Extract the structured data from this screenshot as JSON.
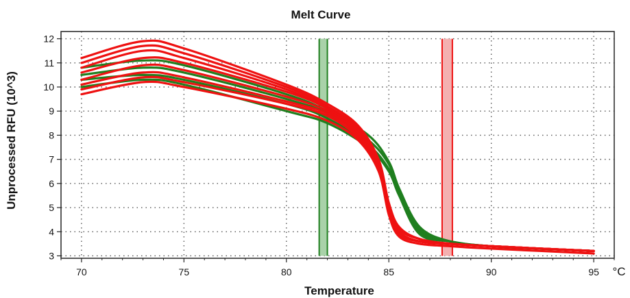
{
  "chart_data": {
    "type": "line",
    "title": "Melt Curve",
    "xlabel": "Temperature",
    "ylabel": "Unprocessed RFU (10^3)",
    "x_unit": "°C",
    "xlim": [
      69,
      96
    ],
    "ylim": [
      2.9,
      12.3
    ],
    "x_ticks": [
      70,
      75,
      80,
      85,
      90,
      95
    ],
    "y_ticks": [
      3,
      4,
      5,
      6,
      7,
      8,
      9,
      10,
      11,
      12
    ],
    "grid": true,
    "colors": {
      "red": "#ee1111",
      "green": "#1f7f1f",
      "frame": "#222222",
      "grid": "#555555"
    },
    "markers": [
      {
        "color": "green",
        "x": [
          81.6,
          82.0
        ]
      },
      {
        "color": "red",
        "x": [
          87.6,
          88.1
        ]
      }
    ],
    "series": [
      {
        "color": "red",
        "x": [
          70,
          73,
          75,
          80,
          82,
          83.5,
          84.5,
          85,
          85.5,
          86.5,
          88,
          90,
          95
        ],
        "y": [
          11.2,
          11.9,
          11.6,
          10.1,
          9.3,
          8.4,
          7.0,
          5.2,
          4.2,
          3.7,
          3.5,
          3.4,
          3.2
        ]
      },
      {
        "color": "red",
        "x": [
          70,
          73,
          75,
          80,
          82,
          83.5,
          84.5,
          85,
          85.5,
          86.5,
          88,
          90,
          95
        ],
        "y": [
          11.0,
          11.7,
          11.4,
          10.0,
          9.2,
          8.3,
          6.9,
          5.1,
          4.1,
          3.7,
          3.5,
          3.4,
          3.2
        ]
      },
      {
        "color": "red",
        "x": [
          70,
          73,
          75,
          80,
          82,
          83.5,
          84.5,
          85,
          85.5,
          86.5,
          88,
          90,
          95
        ],
        "y": [
          10.8,
          11.5,
          11.2,
          9.9,
          9.1,
          8.2,
          6.8,
          5.0,
          4.0,
          3.6,
          3.5,
          3.4,
          3.2
        ]
      },
      {
        "color": "red",
        "x": [
          70,
          73,
          75,
          80,
          82,
          83.5,
          84.5,
          85,
          85.5,
          86.5,
          88,
          90,
          95
        ],
        "y": [
          10.6,
          11.2,
          11.0,
          9.8,
          9.1,
          8.2,
          6.8,
          5.0,
          4.0,
          3.6,
          3.5,
          3.4,
          3.2
        ]
      },
      {
        "color": "red",
        "x": [
          70,
          73,
          75,
          80,
          82,
          83.5,
          84.5,
          85,
          85.5,
          86.5,
          88,
          90,
          95
        ],
        "y": [
          10.3,
          10.9,
          10.7,
          9.6,
          9.0,
          8.1,
          6.7,
          4.9,
          3.9,
          3.6,
          3.5,
          3.4,
          3.2
        ]
      },
      {
        "color": "red",
        "x": [
          70,
          73,
          75,
          80,
          82,
          83.5,
          84.5,
          85,
          85.5,
          86.5,
          88,
          90,
          95
        ],
        "y": [
          10.1,
          10.6,
          10.4,
          9.4,
          8.9,
          8.0,
          6.6,
          4.8,
          3.9,
          3.6,
          3.5,
          3.4,
          3.2
        ]
      },
      {
        "color": "red",
        "x": [
          70,
          73,
          75,
          80,
          82,
          83.5,
          84.5,
          85,
          85.5,
          86.5,
          88,
          90,
          95
        ],
        "y": [
          9.9,
          10.4,
          10.2,
          9.3,
          8.8,
          7.9,
          6.6,
          4.8,
          3.9,
          3.6,
          3.5,
          3.4,
          3.2
        ]
      },
      {
        "color": "red",
        "x": [
          70,
          73,
          75,
          80,
          82,
          83.5,
          84.5,
          85,
          85.5,
          86.5,
          88,
          90,
          95
        ],
        "y": [
          9.7,
          10.2,
          10.0,
          9.1,
          8.6,
          7.8,
          6.5,
          4.7,
          3.8,
          3.5,
          3.4,
          3.3,
          3.1
        ]
      },
      {
        "color": "green",
        "x": [
          70,
          73,
          75,
          80,
          82,
          84,
          85,
          85.5,
          86.5,
          88,
          90,
          95
        ],
        "y": [
          10.8,
          11.1,
          10.9,
          9.7,
          9.0,
          8.0,
          6.9,
          5.8,
          4.2,
          3.6,
          3.4,
          3.2
        ]
      },
      {
        "color": "green",
        "x": [
          70,
          73,
          75,
          80,
          82,
          84,
          85,
          85.5,
          86.5,
          88,
          90,
          95
        ],
        "y": [
          10.5,
          10.8,
          10.6,
          9.5,
          8.9,
          7.8,
          6.8,
          5.7,
          4.1,
          3.6,
          3.4,
          3.2
        ]
      },
      {
        "color": "green",
        "x": [
          70,
          73,
          75,
          80,
          82,
          84,
          85,
          85.5,
          86.5,
          88,
          90,
          95
        ],
        "y": [
          10.3,
          10.5,
          10.3,
          9.3,
          8.7,
          7.6,
          6.6,
          5.6,
          4.0,
          3.6,
          3.4,
          3.2
        ]
      },
      {
        "color": "green",
        "x": [
          70,
          73,
          75,
          80,
          82,
          84,
          85,
          85.5,
          86.5,
          88,
          90,
          95
        ],
        "y": [
          10.0,
          10.3,
          10.1,
          9.0,
          8.5,
          7.5,
          6.5,
          5.5,
          3.9,
          3.6,
          3.4,
          3.2
        ]
      }
    ]
  }
}
